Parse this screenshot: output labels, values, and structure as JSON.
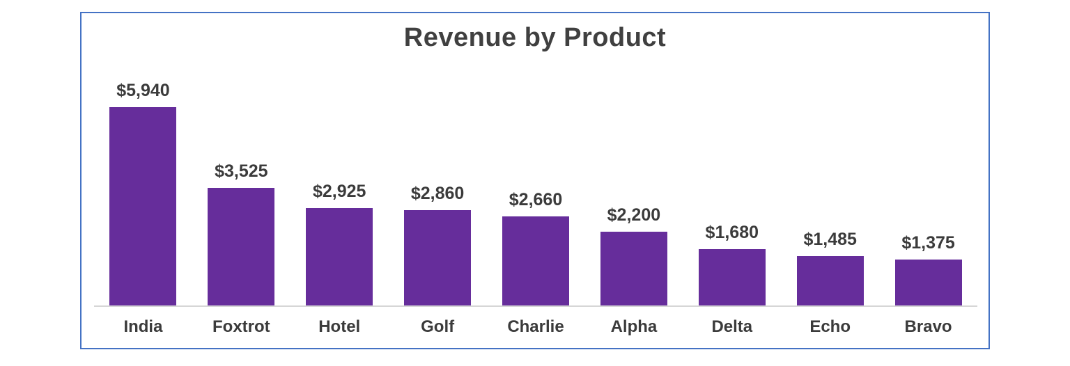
{
  "chart": {
    "title": "Revenue by Product"
  },
  "chart_data": {
    "type": "bar",
    "title": "Revenue by Product",
    "categories": [
      "India",
      "Foxtrot",
      "Hotel",
      "Golf",
      "Charlie",
      "Alpha",
      "Delta",
      "Echo",
      "Bravo"
    ],
    "values": [
      5940,
      3525,
      2925,
      2860,
      2660,
      2200,
      1680,
      1485,
      1375
    ],
    "value_labels": [
      "$5,940",
      "$3,525",
      "$2,925",
      "$2,860",
      "$2,660",
      "$2,200",
      "$1,680",
      "$1,485",
      "$1,375"
    ],
    "xlabel": "",
    "ylabel": "",
    "ylim": [
      0,
      5940
    ],
    "grid": false,
    "legend_position": "none",
    "sort_order": "descending",
    "colors": {
      "bar": "#662D9B",
      "chart_border": "#4472C4",
      "title_text": "#404040",
      "label_text": "#3B3B3B",
      "axis_line": "#D6D6D6",
      "background": "#FFFFFF"
    }
  }
}
